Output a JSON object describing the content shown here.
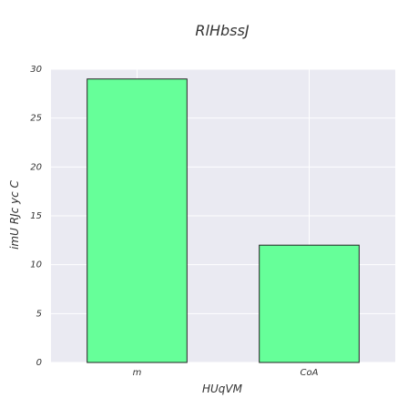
{
  "chart_data": {
    "type": "bar",
    "title": "RlHbssJ",
    "xlabel": "HUqVM",
    "ylabel": "imU RJc yc C",
    "categories": [
      "m",
      "CoA"
    ],
    "values": [
      29,
      12
    ],
    "ylim": [
      0,
      30
    ],
    "yticks": [
      0,
      5,
      10,
      15,
      20,
      25,
      30
    ],
    "grid": true,
    "colors": {
      "plot_background": "#eaeaf2",
      "bar_fill": "#66ff99",
      "bar_stroke": "#222222",
      "grid": "#ffffff",
      "text": "#333333"
    }
  }
}
